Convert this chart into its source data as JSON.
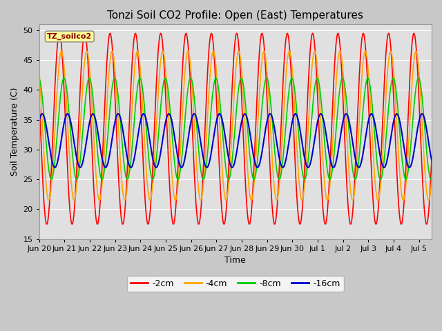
{
  "title": "Tonzi Soil CO2 Profile: Open (East) Temperatures",
  "xlabel": "Time",
  "ylabel": "Soil Temperature (C)",
  "ylim": [
    15,
    51
  ],
  "yticks": [
    15,
    20,
    25,
    30,
    35,
    40,
    45,
    50
  ],
  "legend_label": "TZ_soilco2",
  "series": [
    {
      "label": "-2cm",
      "color": "#FF0000",
      "amplitude": 16.0,
      "mean": 33.5,
      "phase_days": 0.0,
      "lw": 1.2
    },
    {
      "label": "-4cm",
      "color": "#FFA500",
      "amplitude": 12.5,
      "mean": 34.0,
      "phase_days": 0.08,
      "lw": 1.2
    },
    {
      "label": "-8cm",
      "color": "#00CC00",
      "amplitude": 8.5,
      "mean": 33.5,
      "phase_days": 0.18,
      "lw": 1.2
    },
    {
      "label": "-16cm",
      "color": "#0000CC",
      "amplitude": 4.5,
      "mean": 31.5,
      "phase_days": 0.32,
      "lw": 1.5
    }
  ],
  "start_day": 0,
  "end_day": 15.5,
  "n_points": 2000,
  "period": 1.0,
  "xtick_positions": [
    0,
    1,
    2,
    3,
    4,
    5,
    6,
    7,
    8,
    9,
    10,
    11,
    12,
    13,
    14,
    15
  ],
  "xtick_labels": [
    "Jun 20",
    "Jun 21",
    "Jun 22",
    "Jun 23",
    "Jun 24",
    "Jun 25",
    "Jun 26",
    "Jun 27",
    "Jun 28",
    "Jun 29",
    "Jun 30",
    "Jul 1",
    "Jul 2",
    "Jul 3",
    "Jul 4",
    "Jul 5"
  ],
  "bg_color": "#C8C8C8",
  "plot_bg_color": "#E0E0E0",
  "grid_color": "#FFFFFF",
  "legend_box_color": "#FFFF99",
  "legend_text_color": "#8B0000",
  "title_fontsize": 11,
  "axis_label_fontsize": 9,
  "tick_fontsize": 8
}
